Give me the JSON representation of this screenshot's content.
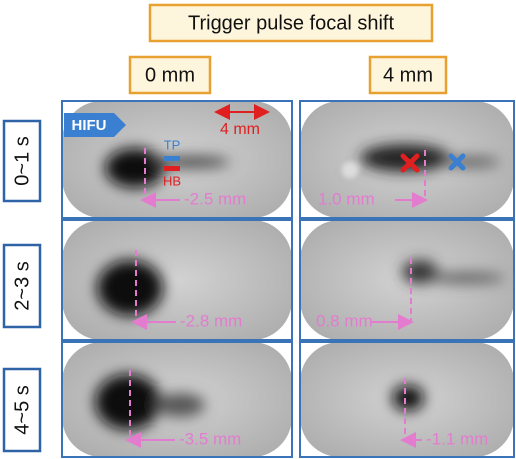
{
  "title": "Trigger pulse focal shift",
  "columns": [
    "0 mm",
    "4 mm"
  ],
  "rows": [
    {
      "label": "0~1 s",
      "panels": [
        "-2.5 mm",
        "1.0 mm"
      ]
    },
    {
      "label": "2~3 s",
      "panels": [
        "-2.8 mm",
        "0.8 mm"
      ]
    },
    {
      "label": "4~5 s",
      "panels": [
        "-3.5 mm",
        "-1.1 mm"
      ]
    }
  ],
  "annotations": {
    "hifu": "HIFU",
    "scale": "4 mm",
    "tp": "TP",
    "hb": "HB"
  }
}
